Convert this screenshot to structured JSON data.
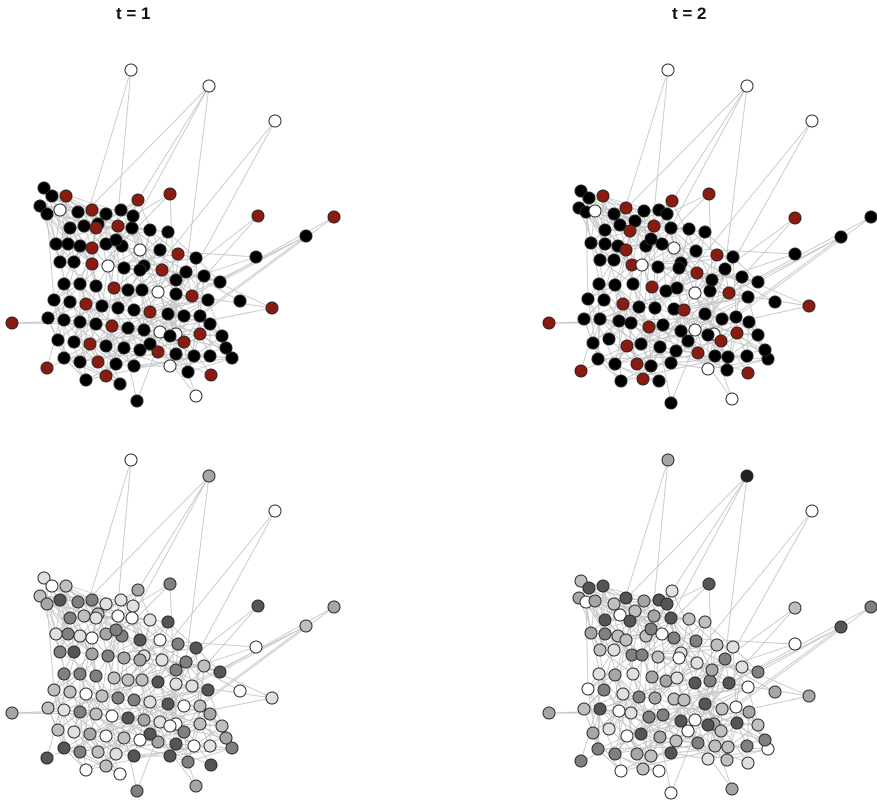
{
  "titles": {
    "left": "t = 1",
    "right": "t = 2"
  },
  "colors": {
    "edge": "#c7c7c7",
    "node_outline": "#2a2a2a",
    "node_white": "#ffffff",
    "node_black": "#000000",
    "node_red": "#8b1a10",
    "gray_scale": [
      "#ffffff",
      "#e0e0e0",
      "#bfbfbf",
      "#a6a6a6",
      "#808080",
      "#555555",
      "#222222"
    ]
  },
  "panels": [
    {
      "name": "top-left",
      "time": 1,
      "color_mode": "categorical"
    },
    {
      "name": "top-right",
      "time": 2,
      "color_mode": "categorical"
    },
    {
      "name": "bottom-left",
      "time": 1,
      "color_mode": "grayscale"
    },
    {
      "name": "bottom-right",
      "time": 2,
      "color_mode": "grayscale"
    }
  ]
}
